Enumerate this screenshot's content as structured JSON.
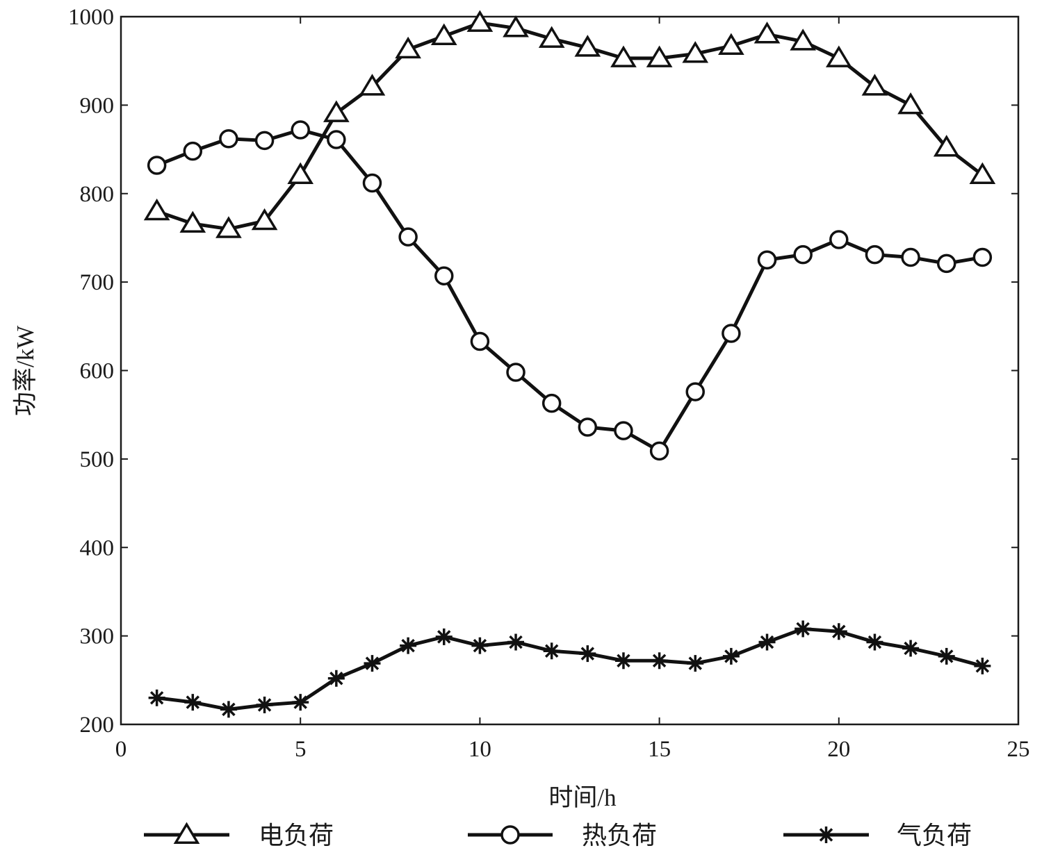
{
  "chart_data": {
    "type": "line",
    "title": "",
    "xlabel": "时间/h",
    "ylabel": "功率/kW",
    "xlim": [
      0,
      25
    ],
    "ylim": [
      200,
      1000
    ],
    "xticks": [
      0,
      5,
      10,
      15,
      20,
      25
    ],
    "xtick_labels": [
      "0",
      "5",
      "10",
      "15",
      "20",
      "25"
    ],
    "yticks": [
      200,
      300,
      400,
      500,
      600,
      700,
      800,
      900,
      1000
    ],
    "ytick_labels": [
      "200",
      "300",
      "400",
      "500",
      "600",
      "700",
      "800",
      "900",
      "1000"
    ],
    "grid": false,
    "legend_position": "bottom",
    "x": [
      1,
      2,
      3,
      4,
      5,
      6,
      7,
      8,
      9,
      10,
      11,
      12,
      13,
      14,
      15,
      16,
      17,
      18,
      19,
      20,
      21,
      22,
      23,
      24
    ],
    "series": [
      {
        "name": "电负荷",
        "marker": "triangle",
        "values": [
          780,
          766,
          760,
          769,
          821,
          891,
          921,
          963,
          978,
          993,
          987,
          975,
          965,
          953,
          953,
          958,
          967,
          980,
          972,
          953,
          921,
          900,
          852,
          821
        ]
      },
      {
        "name": "热负荷",
        "marker": "circle",
        "values": [
          832,
          848,
          862,
          860,
          872,
          861,
          812,
          751,
          707,
          633,
          598,
          563,
          536,
          532,
          509,
          576,
          642,
          725,
          731,
          748,
          731,
          728,
          721,
          728
        ]
      },
      {
        "name": "气负荷",
        "marker": "asterisk",
        "values": [
          230,
          225,
          217,
          222,
          225,
          252,
          269,
          289,
          299,
          289,
          293,
          283,
          280,
          272,
          272,
          269,
          277,
          293,
          308,
          305,
          293,
          286,
          277,
          266
        ]
      }
    ],
    "colors": {
      "line": "#111111",
      "axis": "#1a1a1a"
    }
  }
}
